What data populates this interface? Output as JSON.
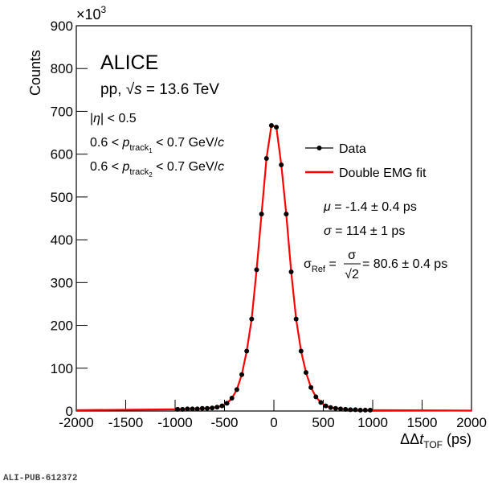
{
  "chart_data": {
    "type": "scatter",
    "y_label": "Counts",
    "y_scale_base": "×10",
    "y_scale_exponent": "3",
    "x_label": {
      "prefix": "ΔΔ",
      "var": "t",
      "sub": "TOF",
      "unit": " (ps)"
    },
    "experiment": "ALICE",
    "system": {
      "pre": "pp, ",
      "sqrt": "√",
      "var": "s",
      "post": " = 13.6 TeV"
    },
    "cuts": [
      {
        "pre": "|",
        "var": "η",
        "post": "| < 0.5"
      },
      {
        "pre": "0.6 < ",
        "var": "p",
        "sub": "track",
        "subsub": "1",
        "post": " < 0.7 GeV/",
        "unit": "c"
      },
      {
        "pre": "0.6 < ",
        "var": "p",
        "sub": "track",
        "subsub": "2",
        "post": " < 0.7 GeV/",
        "unit": "c"
      }
    ],
    "results": [
      {
        "var": "μ",
        "text": " = -1.4 ± 0.4 ps"
      },
      {
        "var": "σ",
        "text": " = 114 ± 1 ps"
      },
      {
        "var": "σ",
        "sub": "Ref",
        "eq": " = ",
        "num": "σ",
        "den": "√2",
        "text": " = 80.6 ± 0.4 ps"
      }
    ],
    "footer": "ALI-PUB-612372",
    "xlim": [
      -2000,
      2000
    ],
    "ylim": [
      0,
      900
    ],
    "xticks": [
      -2000,
      -1500,
      -1000,
      -500,
      0,
      500,
      1000,
      1500,
      2000
    ],
    "yticks": [
      0,
      100,
      200,
      300,
      400,
      500,
      600,
      700,
      800,
      900
    ],
    "series": [
      {
        "name": "Data",
        "color": "#000000",
        "kind": "points",
        "x": [
          -975,
          -925,
          -875,
          -825,
          -775,
          -725,
          -675,
          -625,
          -575,
          -525,
          -475,
          -425,
          -375,
          -325,
          -275,
          -225,
          -175,
          -125,
          -75,
          -25,
          25,
          75,
          125,
          175,
          225,
          275,
          325,
          375,
          425,
          475,
          525,
          575,
          625,
          675,
          725,
          775,
          825,
          875,
          925,
          975
        ],
        "values": [
          4,
          4,
          5,
          5,
          5,
          6,
          6,
          7,
          9,
          12,
          18,
          30,
          50,
          85,
          140,
          215,
          330,
          460,
          590,
          667,
          663,
          575,
          460,
          325,
          215,
          140,
          90,
          55,
          33,
          20,
          12,
          8,
          6,
          5,
          4,
          3,
          3,
          2,
          2,
          2
        ]
      },
      {
        "name": "Double EMG fit",
        "color": "#ff0000",
        "kind": "line",
        "x": [
          -2000,
          -975,
          -875,
          -775,
          -675,
          -575,
          -525,
          -475,
          -425,
          -375,
          -325,
          -275,
          -225,
          -175,
          -125,
          -75,
          -25,
          25,
          75,
          125,
          175,
          225,
          275,
          325,
          375,
          425,
          475,
          525,
          575,
          675,
          775,
          875,
          975,
          2000
        ],
        "values": [
          2,
          4,
          5,
          5,
          6,
          9,
          12,
          18,
          30,
          50,
          85,
          140,
          215,
          330,
          460,
          590,
          667,
          663,
          575,
          460,
          325,
          215,
          140,
          90,
          55,
          33,
          20,
          12,
          8,
          5,
          3,
          2,
          2,
          1
        ]
      }
    ]
  }
}
